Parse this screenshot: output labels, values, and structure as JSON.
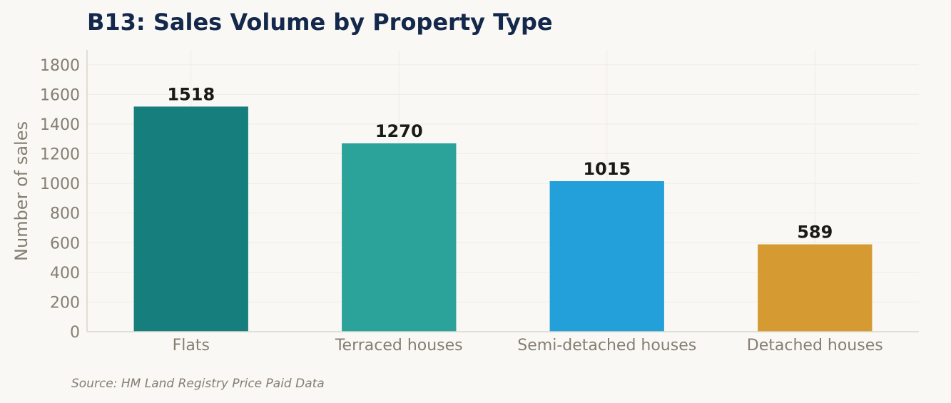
{
  "chart_data": {
    "type": "bar",
    "title": "B13: Sales Volume by Property Type",
    "xlabel": "",
    "ylabel": "Number of sales",
    "categories": [
      "Flats",
      "Terraced houses",
      "Semi-detached houses",
      "Detached houses"
    ],
    "values": [
      1518,
      1270,
      1015,
      589
    ],
    "data_labels": [
      "1518",
      "1270",
      "1015",
      "589"
    ],
    "ylim": [
      0,
      1900
    ],
    "yticks": [
      0,
      200,
      400,
      600,
      800,
      1000,
      1200,
      1400,
      1600,
      1800
    ],
    "grid": true,
    "legend": "none",
    "source": "Source: HM Land Registry Price Paid Data"
  },
  "colors": {
    "background": "#f9f8f4",
    "title": "#14284b",
    "axis_text": "#857e72",
    "data_label": "#1c1a16",
    "grid": "#efece4",
    "axis_line": "#d9d5c8",
    "bars": [
      "#167f7d",
      "#2ba39a",
      "#239fda",
      "#d69a33"
    ]
  }
}
